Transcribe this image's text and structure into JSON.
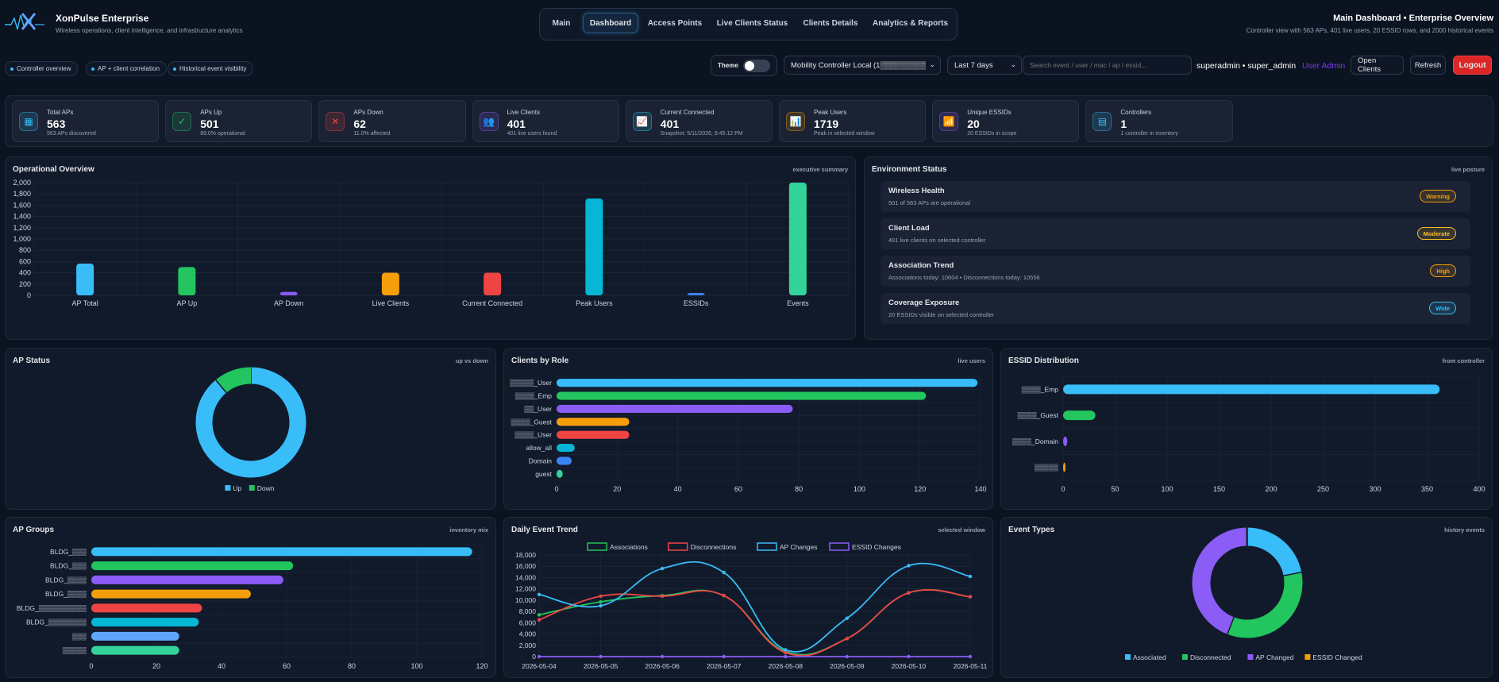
{
  "header": {
    "app_name": "XonPulse Enterprise",
    "tagline": "Wireless operations, client intelligence, and infrastructure analytics",
    "page_title": "Main Dashboard • Enterprise Overview",
    "page_subtitle": "Controller view with 563 APs, 401 live users, 20 ESSID rows, and 2000 historical events"
  },
  "nav": {
    "tabs": [
      {
        "label": "Main",
        "active": false
      },
      {
        "label": "Dashboard",
        "active": true
      },
      {
        "label": "Access Points",
        "active": false
      },
      {
        "label": "Live Clients Status",
        "active": false
      },
      {
        "label": "Clients Details",
        "active": false
      },
      {
        "label": "Analytics & Reports",
        "active": false
      }
    ]
  },
  "pills": [
    "Controller overview",
    "AP + client correlation",
    "Historical event visibility"
  ],
  "toolbar": {
    "theme_label": "Theme",
    "controller_select": "Mobility Controller Local (1▒▒▒▒▒▒▒▒▒)",
    "range_select": "Last 7 days",
    "search_placeholder": "Search event / user / mac / ap / essid...",
    "user": "superadmin • super_admin",
    "role": "User Admin",
    "open_clients": "Open Clients",
    "refresh": "Refresh",
    "logout": "Logout"
  },
  "kpis": [
    {
      "label": "Total APs",
      "value": "563",
      "sub": "563 APs discovered",
      "icon": "grid-icon",
      "color": "#38bdf8"
    },
    {
      "label": "APs Up",
      "value": "501",
      "sub": "89.0% operational",
      "icon": "check-icon",
      "color": "#22c55e"
    },
    {
      "label": "APs Down",
      "value": "62",
      "sub": "11.0% affected",
      "icon": "x-icon",
      "color": "#ef4444"
    },
    {
      "label": "Live Clients",
      "value": "401",
      "sub": "401 live users found",
      "icon": "users-icon",
      "color": "#8b5cf6"
    },
    {
      "label": "Current Connected",
      "value": "401",
      "sub": "Snapshot: 5/11/2026, 9:45:12 PM",
      "icon": "trend-icon",
      "color": "#22d3ee"
    },
    {
      "label": "Peak Users",
      "value": "1719",
      "sub": "Peak in selected window",
      "icon": "chart-icon",
      "color": "#f59e0b"
    },
    {
      "label": "Unique ESSIDs",
      "value": "20",
      "sub": "20 ESSIDs in scope",
      "icon": "wifi-icon",
      "color": "#8b5cf6"
    },
    {
      "label": "Controllers",
      "value": "1",
      "sub": "1 controller in inventory",
      "icon": "server-icon",
      "color": "#38bdf8"
    }
  ],
  "panels": {
    "overview": {
      "title": "Operational Overview",
      "tag": "executive summary"
    },
    "environment": {
      "title": "Environment Status",
      "tag": "live posture"
    },
    "ap_status": {
      "title": "AP Status",
      "tag": "up vs down"
    },
    "roles": {
      "title": "Clients by Role",
      "tag": "live users"
    },
    "essid": {
      "title": "ESSID Distribution",
      "tag": "from controller"
    },
    "groups": {
      "title": "AP Groups",
      "tag": "inventory mix"
    },
    "trend": {
      "title": "Daily Event Trend",
      "tag": "selected window"
    },
    "types": {
      "title": "Event Types",
      "tag": "history events"
    }
  },
  "environment": [
    {
      "title": "Wireless Health",
      "sub": "501 of 563 APs are operational",
      "badge": "Warning",
      "badge_color": "#f59e0b"
    },
    {
      "title": "Client Load",
      "sub": "401 live clients on selected controller",
      "badge": "Moderate",
      "badge_color": "#fbbf24"
    },
    {
      "title": "Association Trend",
      "sub": "Associations today: 10604 • Disconnections today: 10556",
      "badge": "High",
      "badge_color": "#f59e0b"
    },
    {
      "title": "Coverage Exposure",
      "sub": "20 ESSIDs visible on selected controller",
      "badge": "Wide",
      "badge_color": "#38bdf8"
    }
  ],
  "chart_data": [
    {
      "id": "overview",
      "type": "bar",
      "categories": [
        "AP Total",
        "AP Up",
        "AP Down",
        "Live Clients",
        "Current Connected",
        "Peak Users",
        "ESSIDs",
        "Events"
      ],
      "values": [
        563,
        501,
        62,
        401,
        401,
        1719,
        20,
        2000
      ],
      "colors": [
        "#38bdf8",
        "#22c55e",
        "#8b5cf6",
        "#f59e0b",
        "#ef4444",
        "#06b6d4",
        "#3b82f6",
        "#34d399"
      ],
      "yticks": [
        "0",
        "200",
        "400",
        "600",
        "800",
        "1,000",
        "1,200",
        "1,400",
        "1,600",
        "1,800",
        "2,000"
      ],
      "ylim": [
        0,
        2000
      ],
      "grid": true
    },
    {
      "id": "ap_status",
      "type": "pie",
      "donut": true,
      "labels": [
        "Up",
        "Down"
      ],
      "values": [
        501,
        62
      ],
      "colors": [
        "#38bdf8",
        "#22c55e"
      ],
      "legend": "bottom"
    },
    {
      "id": "roles",
      "type": "bar",
      "orientation": "horizontal",
      "categories": [
        "▒▒▒▒▒_User",
        "▒▒▒▒_Emp",
        "▒▒_User",
        "▒▒▒▒_Guest",
        "▒▒▒▒_User",
        "allow_all",
        "Domain",
        "guest"
      ],
      "values": [
        139,
        122,
        78,
        24,
        24,
        6,
        5,
        2
      ],
      "colors": [
        "#38bdf8",
        "#22c55e",
        "#8b5cf6",
        "#f59e0b",
        "#ef4444",
        "#06b6d4",
        "#3b82f6",
        "#34d399"
      ],
      "xticks": [
        "0",
        "20",
        "40",
        "60",
        "80",
        "100",
        "120",
        "140"
      ],
      "xlim": [
        0,
        140
      ]
    },
    {
      "id": "essid",
      "type": "bar",
      "orientation": "horizontal",
      "categories": [
        "▒▒▒▒_Emp",
        "▒▒▒▒_Guest",
        "▒▒▒▒_Domain",
        "▒▒▒▒▒"
      ],
      "values": [
        362,
        31,
        4,
        2
      ],
      "colors": [
        "#38bdf8",
        "#22c55e",
        "#8b5cf6",
        "#f59e0b"
      ],
      "xticks": [
        "0",
        "50",
        "100",
        "150",
        "200",
        "250",
        "300",
        "350",
        "400"
      ],
      "xlim": [
        0,
        400
      ]
    },
    {
      "id": "groups",
      "type": "bar",
      "orientation": "horizontal",
      "categories": [
        "BLDG_▒▒▒",
        "BLDG_▒▒▒",
        "BLDG_▒▒▒▒",
        "BLDG_▒▒▒▒",
        "BLDG_▒▒▒▒▒▒▒▒▒▒",
        "BLDG_▒▒▒▒▒▒▒▒",
        "▒▒▒",
        "▒▒▒▒▒"
      ],
      "values": [
        117,
        62,
        59,
        49,
        34,
        33,
        27,
        27
      ],
      "colors": [
        "#38bdf8",
        "#22c55e",
        "#8b5cf6",
        "#f59e0b",
        "#ef4444",
        "#06b6d4",
        "#60a5fa",
        "#34d399"
      ],
      "xticks": [
        "0",
        "20",
        "40",
        "60",
        "80",
        "100",
        "120"
      ],
      "xlim": [
        0,
        120
      ]
    },
    {
      "id": "trend",
      "type": "line",
      "x": [
        "2026-05-04",
        "2026-05-05",
        "2026-05-06",
        "2026-05-07",
        "2026-05-08",
        "2026-05-09",
        "2026-05-10",
        "2026-05-11"
      ],
      "series": [
        {
          "name": "Associations",
          "values": [
            7400,
            9700,
            10800,
            10800,
            900,
            3200,
            11300,
            10600
          ],
          "color": "#22c55e"
        },
        {
          "name": "Disconnections",
          "values": [
            6500,
            10700,
            10700,
            10800,
            700,
            3200,
            11300,
            10600
          ],
          "color": "#ef4444"
        },
        {
          "name": "AP Changes",
          "values": [
            11000,
            9000,
            15600,
            14900,
            1200,
            6800,
            16100,
            14200
          ],
          "color": "#38bdf8"
        },
        {
          "name": "ESSID Changes",
          "values": [
            0,
            0,
            0,
            0,
            0,
            0,
            0,
            0
          ],
          "color": "#8b5cf6"
        }
      ],
      "yticks": [
        "0",
        "2,000",
        "4,000",
        "6,000",
        "8,000",
        "10,000",
        "12,000",
        "14,000",
        "16,000",
        "18,000"
      ],
      "ylim": [
        0,
        18000
      ],
      "legend": "top"
    },
    {
      "id": "types",
      "type": "pie",
      "donut": true,
      "labels": [
        "Associated",
        "Disconnected",
        "AP Changed",
        "ESSID Changed"
      ],
      "values": [
        22,
        34,
        44,
        0.2
      ],
      "colors": [
        "#38bdf8",
        "#22c55e",
        "#8b5cf6",
        "#f59e0b"
      ],
      "legend": "bottom"
    }
  ]
}
